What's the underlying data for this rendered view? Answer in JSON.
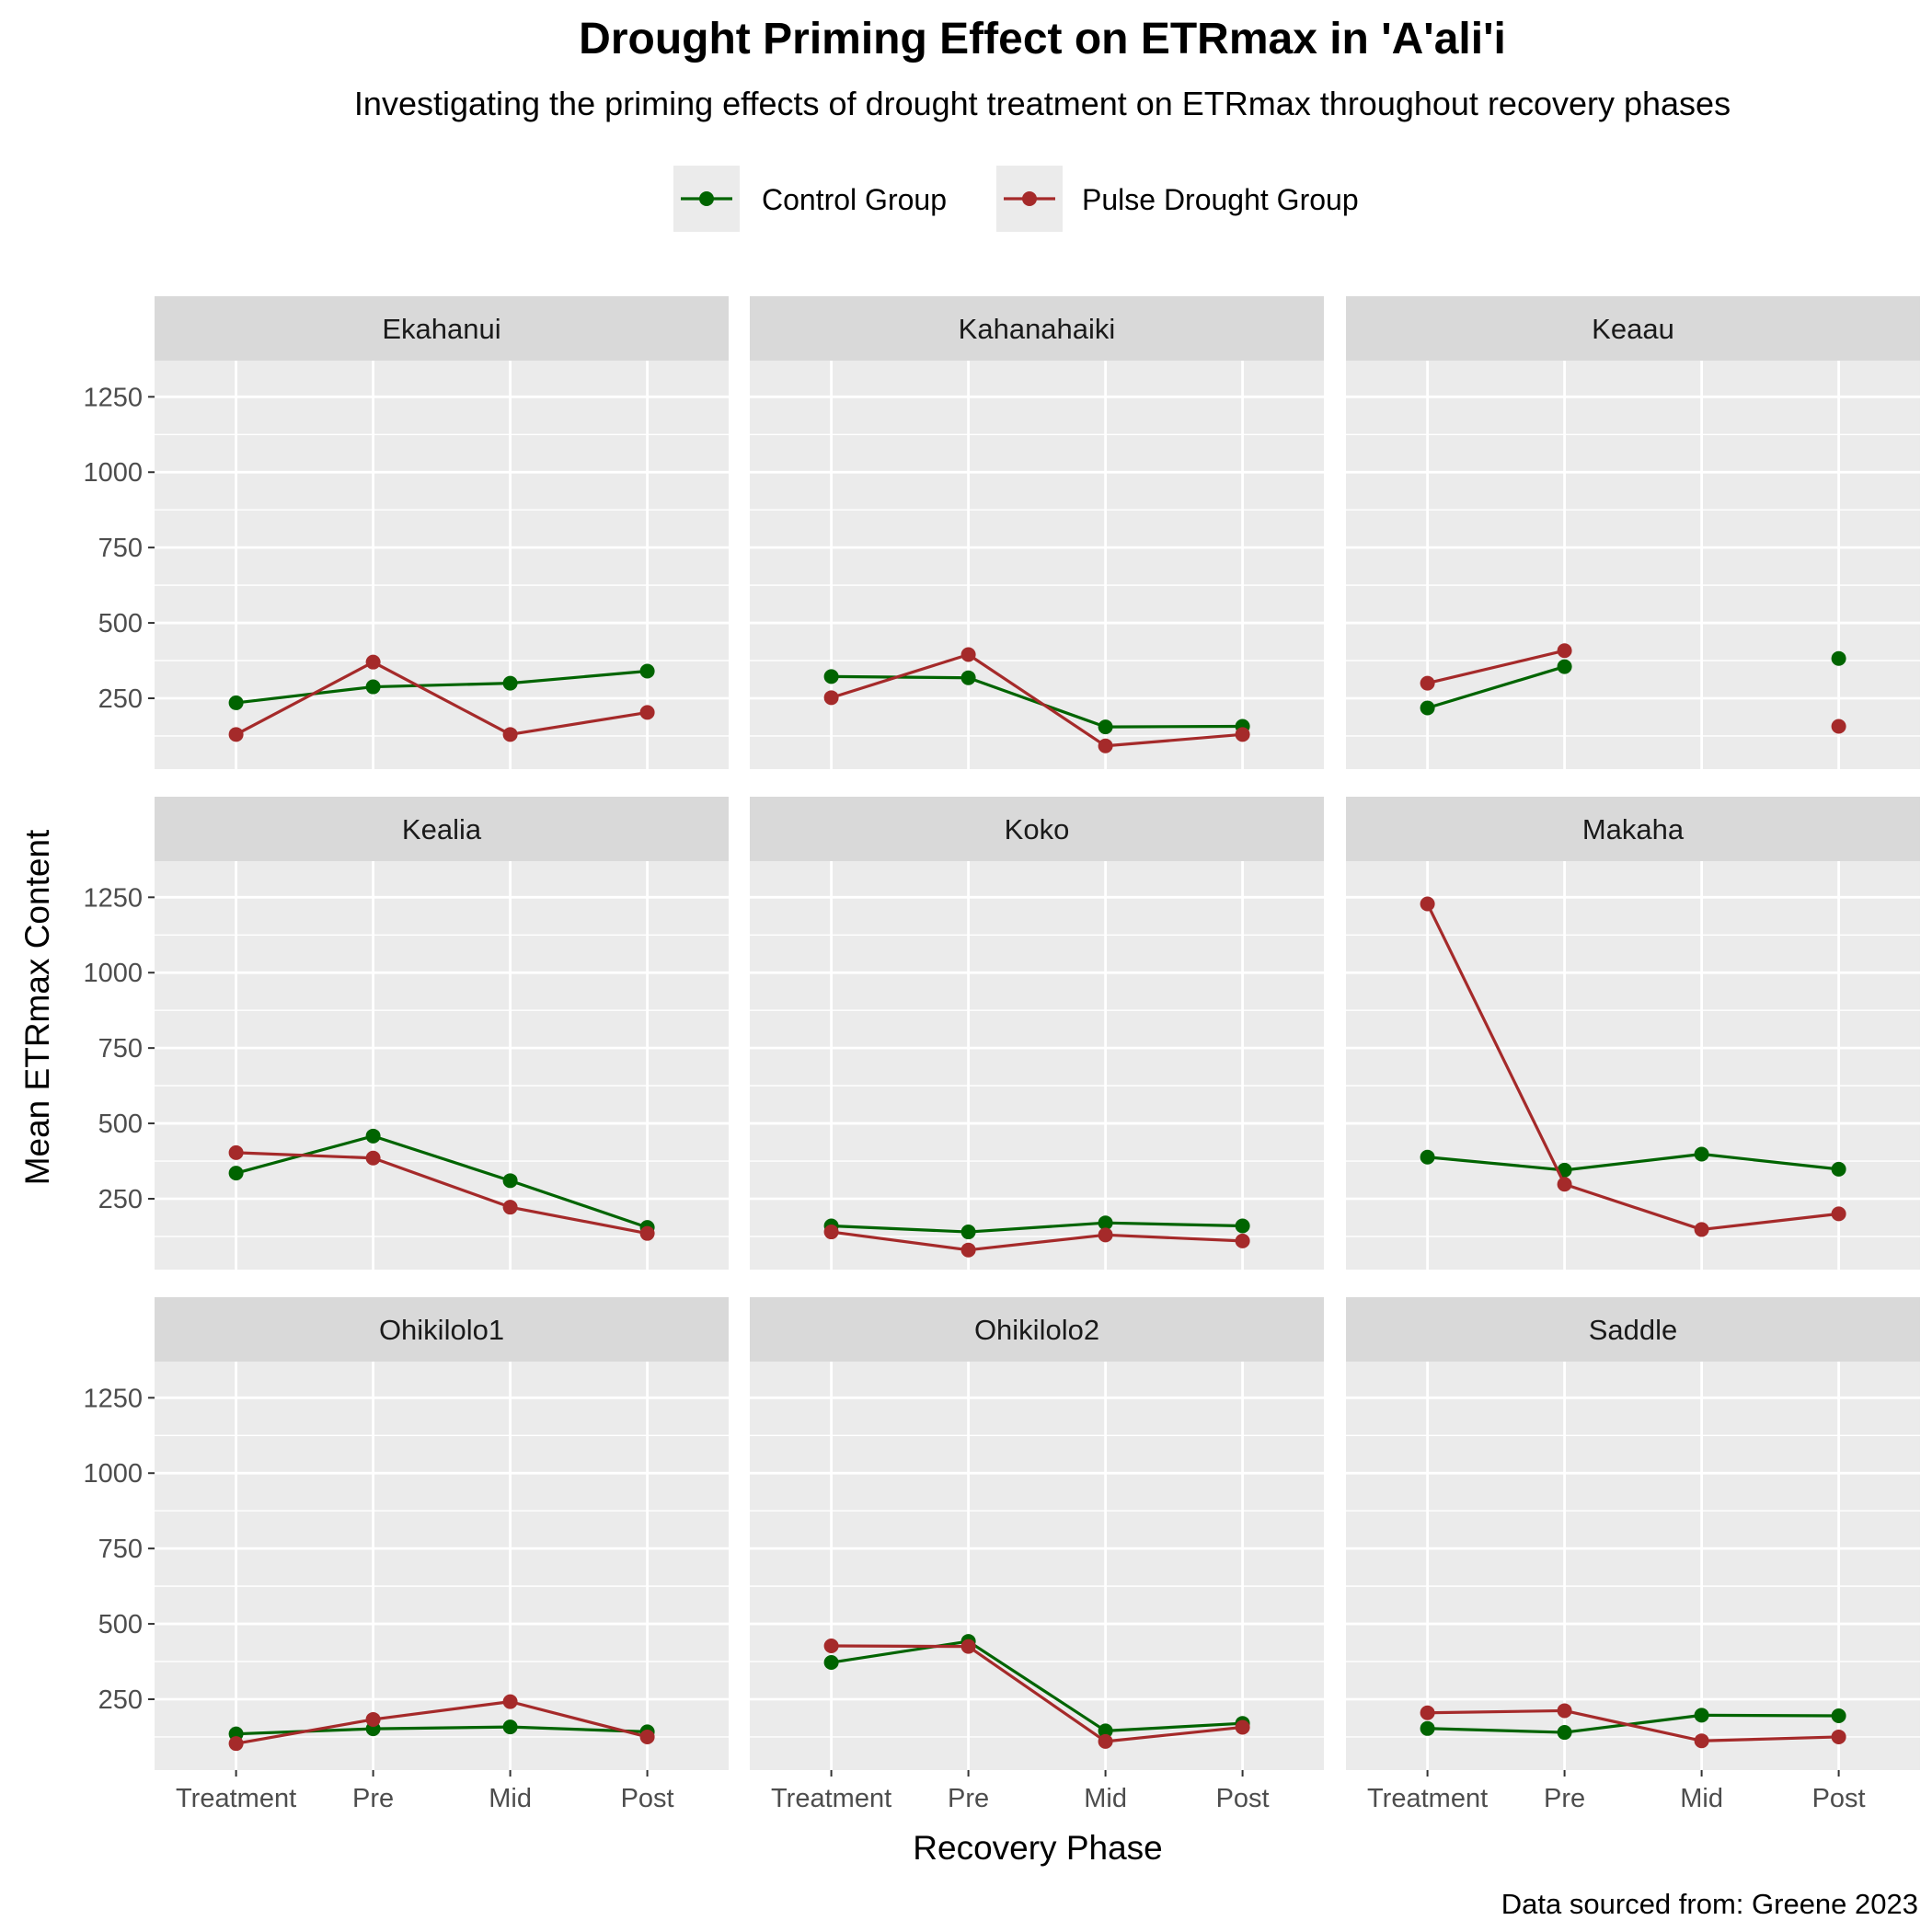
{
  "chart_data": {
    "type": "line",
    "title": "Drought Priming Effect on ETRmax in 'A'ali'i",
    "subtitle": "Investigating the priming effects of drought treatment on ETRmax throughout recovery phases",
    "xlabel": "Recovery Phase",
    "ylabel": "Mean ETRmax Content",
    "caption": "Data sourced from: Greene 2023",
    "categories": [
      "Treatment",
      "Pre",
      "Mid",
      "Post"
    ],
    "y_ticks": [
      250,
      500,
      750,
      1000,
      1250
    ],
    "ylim": [
      15,
      1370
    ],
    "grid": true,
    "legend_position": "top",
    "series_styles": [
      {
        "name": "Control Group",
        "color": "#006400"
      },
      {
        "name": "Pulse Drought Group",
        "color": "#A52A2A"
      }
    ],
    "panels": [
      {
        "name": "Ekahanui",
        "series": [
          {
            "name": "Control Group",
            "values": [
              235,
              288,
              300,
              340
            ]
          },
          {
            "name": "Pulse Drought Group",
            "values": [
              130,
              370,
              130,
              203
            ]
          }
        ]
      },
      {
        "name": "Kahanahaiki",
        "series": [
          {
            "name": "Control Group",
            "values": [
              322,
              318,
              155,
              157
            ]
          },
          {
            "name": "Pulse Drought Group",
            "values": [
              252,
              395,
              92,
              130
            ]
          }
        ]
      },
      {
        "name": "Keaau",
        "series": [
          {
            "name": "Control Group",
            "values": [
              218,
              355,
              null,
              382
            ]
          },
          {
            "name": "Pulse Drought Group",
            "values": [
              300,
              408,
              null,
              157
            ]
          }
        ]
      },
      {
        "name": "Kealia",
        "series": [
          {
            "name": "Control Group",
            "values": [
              335,
              458,
              310,
              155
            ]
          },
          {
            "name": "Pulse Drought Group",
            "values": [
              403,
              385,
              222,
              135
            ]
          }
        ]
      },
      {
        "name": "Koko",
        "series": [
          {
            "name": "Control Group",
            "values": [
              160,
              140,
              170,
              160
            ]
          },
          {
            "name": "Pulse Drought Group",
            "values": [
              140,
              80,
              130,
              110
            ]
          }
        ]
      },
      {
        "name": "Makaha",
        "series": [
          {
            "name": "Control Group",
            "values": [
              388,
              345,
              398,
              348
            ]
          },
          {
            "name": "Pulse Drought Group",
            "values": [
              1228,
              298,
              148,
              200
            ]
          }
        ]
      },
      {
        "name": "Ohikilolo1",
        "series": [
          {
            "name": "Control Group",
            "values": [
              135,
              152,
              158,
              142
            ]
          },
          {
            "name": "Pulse Drought Group",
            "values": [
              103,
              183,
              242,
              125
            ]
          }
        ]
      },
      {
        "name": "Ohikilolo2",
        "series": [
          {
            "name": "Control Group",
            "values": [
              372,
              442,
              145,
              170
            ]
          },
          {
            "name": "Pulse Drought Group",
            "values": [
              427,
              425,
              110,
              157
            ]
          }
        ]
      },
      {
        "name": "Saddle",
        "series": [
          {
            "name": "Control Group",
            "values": [
              153,
              140,
              197,
              195
            ]
          },
          {
            "name": "Pulse Drought Group",
            "values": [
              205,
              212,
              112,
              125
            ]
          }
        ]
      }
    ]
  }
}
